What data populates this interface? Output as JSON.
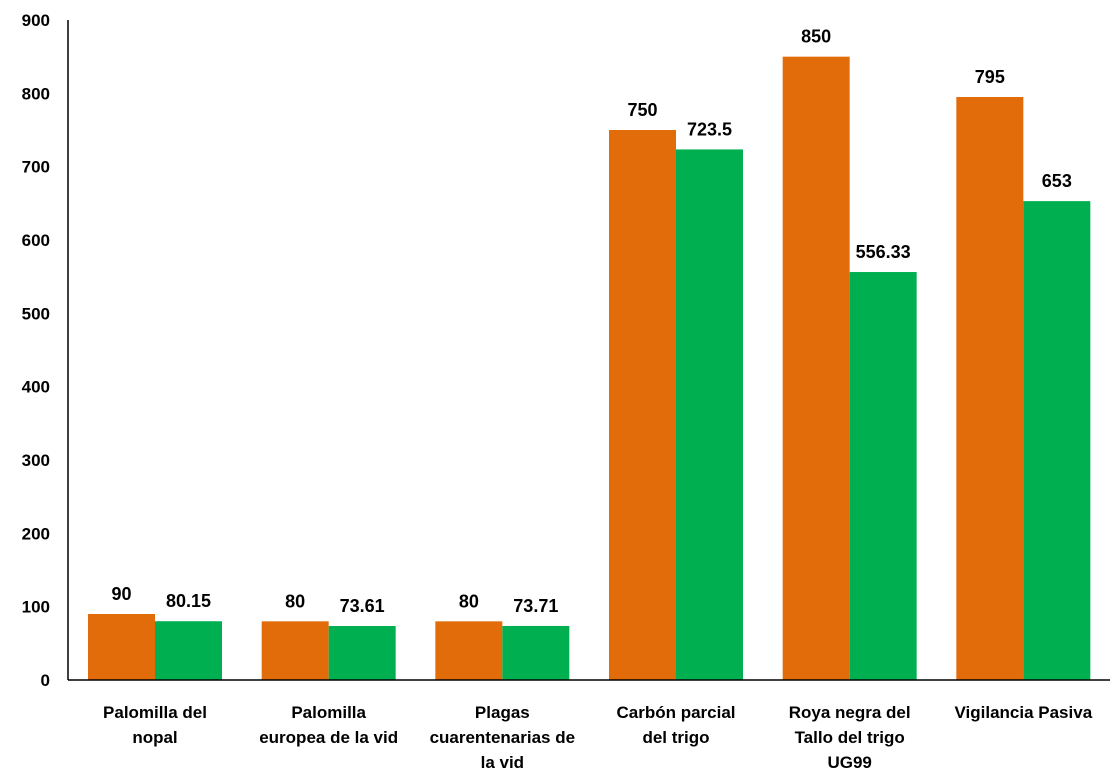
{
  "chart_data": {
    "type": "bar",
    "title": "",
    "xlabel": "",
    "ylabel": "",
    "ylim": [
      0,
      900
    ],
    "yticks": [
      0,
      100,
      200,
      300,
      400,
      500,
      600,
      700,
      800,
      900
    ],
    "grid": false,
    "legend": "none",
    "categories": [
      [
        "Palomilla del",
        "nopal"
      ],
      [
        "Palomilla",
        "europea de la vid"
      ],
      [
        "Plagas",
        "cuarentenarias de",
        "la vid"
      ],
      [
        "Carbón parcial",
        "del trigo"
      ],
      [
        "Roya negra del",
        "Tallo del trigo",
        "UG99"
      ],
      [
        "Vigilancia Pasiva"
      ]
    ],
    "series": [
      {
        "color": "#E36C0A",
        "values": [
          90,
          80,
          80,
          750,
          850,
          795
        ],
        "labels": [
          "90",
          "80",
          "80",
          "750",
          "850",
          "795"
        ]
      },
      {
        "color": "#00B050",
        "values": [
          80.15,
          73.61,
          73.71,
          723.5,
          556.33,
          653
        ],
        "labels": [
          "80.15",
          "73.61",
          "73.71",
          "723.5",
          "556.33",
          "653"
        ]
      }
    ]
  }
}
